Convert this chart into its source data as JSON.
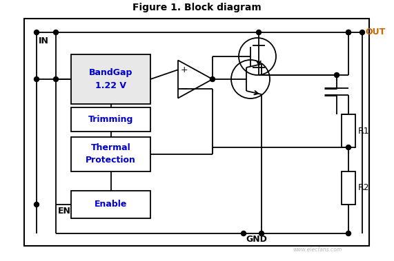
{
  "title": "Figure 1. Block diagram",
  "title_fontsize": 10,
  "title_fontweight": "bold",
  "bg_color": "#ffffff",
  "box_fill_gray": "#e8e8e8",
  "box_fill_white": "#ffffff",
  "line_color": "#000000",
  "label_in_color": "#000000",
  "label_out_color": "#cc6600",
  "label_en_color": "#000000",
  "label_gnd_color": "#000000",
  "bandgap_label1": "BandGap",
  "bandgap_label2": "1.22 V",
  "bandgap_label_color": "#0000cc",
  "trimming_label": "Trimming",
  "thermal_label1": "Thermal",
  "thermal_label2": "Protection",
  "enable_label": "Enable",
  "r1_label": "R1",
  "r2_label": "R2",
  "in_label": "IN",
  "out_label": "OUT",
  "en_label": "EN",
  "gnd_label": "GND",
  "watermark": "www.elecfans.com",
  "out_label_color": "#cc6600",
  "in_label_color": "#000000",
  "en_label_color": "#000000",
  "gnd_label_color": "#000000",
  "block_label_color": "#0000cc"
}
